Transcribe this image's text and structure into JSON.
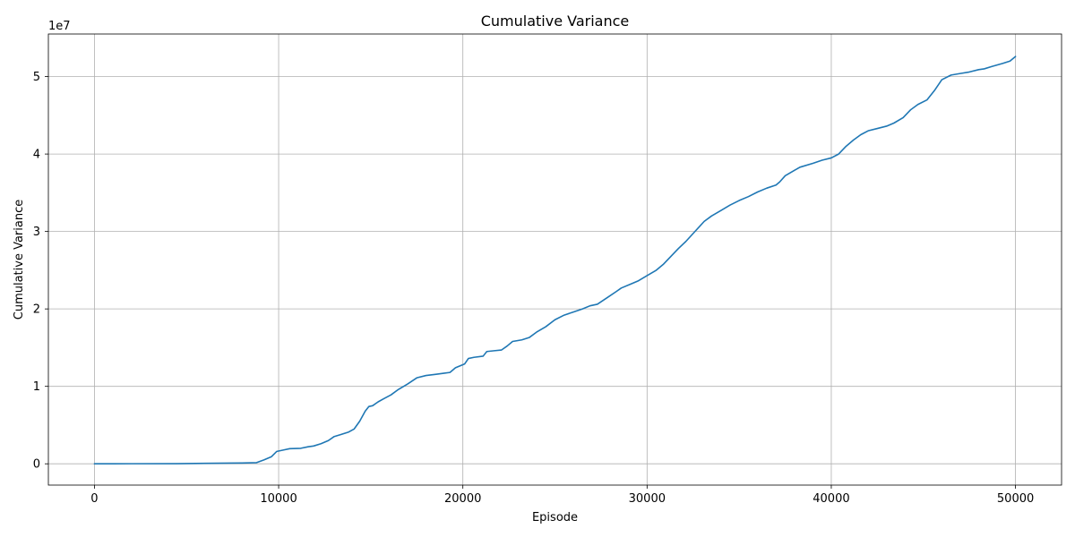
{
  "chart_data": {
    "type": "line",
    "title": "Cumulative Variance",
    "xlabel": "Episode",
    "ylabel": "Cumulative Variance",
    "y_offset_label": "1e7",
    "y_multiplier": 10000000,
    "xlim": [
      -2500,
      52500
    ],
    "ylim": [
      -2750000,
      55500000
    ],
    "x_ticks": [
      0,
      10000,
      20000,
      30000,
      40000,
      50000
    ],
    "x_tick_labels": [
      "0",
      "10000",
      "20000",
      "30000",
      "40000",
      "50000"
    ],
    "y_ticks": [
      0,
      10000000,
      20000000,
      30000000,
      40000000,
      50000000
    ],
    "y_tick_labels": [
      "0",
      "1",
      "2",
      "3",
      "4",
      "5"
    ],
    "grid": true,
    "line_color": "#1f77b4",
    "series": [
      {
        "x": [
          0,
          2000,
          4500,
          6000,
          8000,
          8800,
          9200,
          9600,
          9900,
          10300,
          10600,
          11200,
          11600,
          11900,
          12300,
          12700,
          13000,
          13400,
          13800,
          14100,
          14400,
          14700,
          14900,
          15100,
          15400,
          15700,
          16100,
          16500,
          17000,
          17500,
          18000,
          18500,
          19000,
          19300,
          19600,
          20100,
          20300,
          20600,
          21100,
          21300,
          21700,
          22100,
          22400,
          22700,
          23200,
          23600,
          24000,
          24500,
          25000,
          25500,
          26000,
          26500,
          26900,
          27300,
          27800,
          28300,
          28600,
          29100,
          29500,
          30000,
          30500,
          30900,
          31300,
          31700,
          32100,
          32600,
          33100,
          33500,
          34000,
          34500,
          35000,
          35500,
          36000,
          36500,
          37000,
          37200,
          37500,
          38000,
          38300,
          39000,
          39500,
          40000,
          40400,
          40800,
          41200,
          41600,
          42000,
          42500,
          43000,
          43400,
          43900,
          44300,
          44700,
          45200,
          45600,
          46000,
          46500,
          47000,
          47500,
          48000,
          48300,
          48700,
          49000,
          49300,
          49700,
          50000
        ],
        "y": [
          0,
          10000,
          20000,
          60000,
          100000,
          150000,
          500000,
          900000,
          1600000,
          1800000,
          1950000,
          2000000,
          2200000,
          2300000,
          2600000,
          3000000,
          3500000,
          3800000,
          4100000,
          4500000,
          5500000,
          6800000,
          7400000,
          7500000,
          8000000,
          8400000,
          8900000,
          9600000,
          10300000,
          11100000,
          11400000,
          11550000,
          11700000,
          11800000,
          12400000,
          12900000,
          13600000,
          13750000,
          13900000,
          14500000,
          14600000,
          14700000,
          15200000,
          15800000,
          16000000,
          16300000,
          17000000,
          17700000,
          18600000,
          19200000,
          19600000,
          20000000,
          20400000,
          20600000,
          21400000,
          22200000,
          22700000,
          23200000,
          23600000,
          24300000,
          25000000,
          25800000,
          26800000,
          27800000,
          28700000,
          30000000,
          31300000,
          32000000,
          32700000,
          33400000,
          34000000,
          34500000,
          35100000,
          35600000,
          36000000,
          36400000,
          37200000,
          37900000,
          38300000,
          38800000,
          39200000,
          39500000,
          40000000,
          41000000,
          41800000,
          42500000,
          43000000,
          43300000,
          43600000,
          44000000,
          44700000,
          45700000,
          46400000,
          47000000,
          48200000,
          49600000,
          50200000,
          50400000,
          50600000,
          50900000,
          51000000,
          51300000,
          51500000,
          51700000,
          52000000,
          52600000
        ]
      }
    ]
  }
}
